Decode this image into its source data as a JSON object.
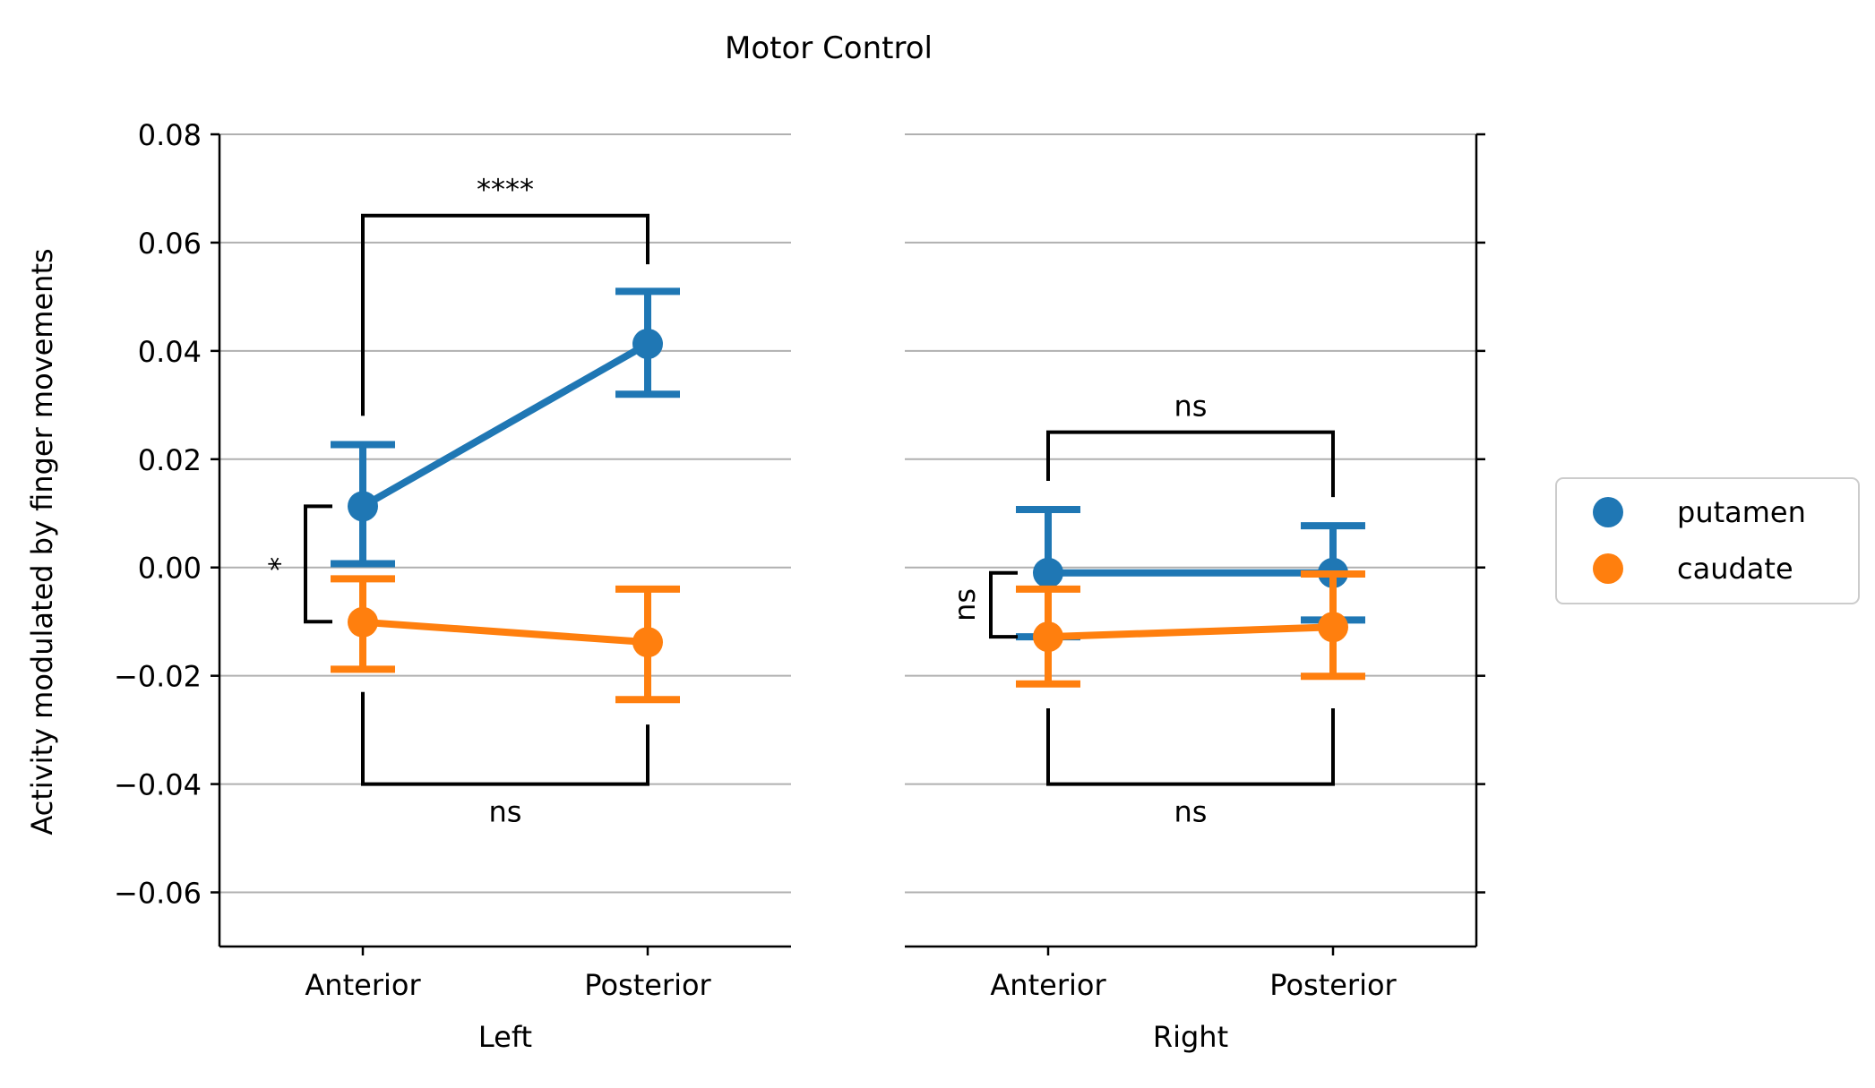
{
  "title": "Motor Control",
  "ylabel": "Activity modulated by finger movements",
  "legend": {
    "placement": "center-right",
    "entries": [
      {
        "name": "putamen",
        "color": "#1f77b4"
      },
      {
        "name": "caudate",
        "color": "#ff7f0e"
      }
    ]
  },
  "chart_data": {
    "type": "line",
    "ylim": [
      -0.07,
      0.08
    ],
    "yticks": [
      0.08,
      0.06,
      0.04,
      0.02,
      0.0,
      -0.02,
      -0.04,
      -0.06
    ],
    "ytick_labels": [
      "0.08",
      "0.06",
      "0.04",
      "0.02",
      "0.00",
      "−0.02",
      "−0.04",
      "−0.06"
    ],
    "grid": "y",
    "categories": [
      "Anterior",
      "Posterior"
    ],
    "panels": [
      {
        "xlabel": "Left",
        "series": [
          {
            "name": "putamen",
            "color": "#1f77b4",
            "values": [
              0.0113,
              0.0413
            ],
            "ci_low": [
              0.0007,
              0.032
            ],
            "ci_high": [
              0.0227,
              0.051
            ]
          },
          {
            "name": "caudate",
            "color": "#ff7f0e",
            "values": [
              -0.0101,
              -0.0138
            ],
            "ci_low": [
              -0.0188,
              -0.0244
            ],
            "ci_high": [
              -0.0021,
              -0.004
            ]
          }
        ],
        "annotations": [
          {
            "label": "****",
            "type": "horizontal",
            "from": 0,
            "to": 1,
            "bar_y": 0.065,
            "arm_from": [
              0.028,
              0.056
            ]
          },
          {
            "label": "ns",
            "type": "horizontal",
            "from": 0,
            "to": 1,
            "bar_y": -0.04,
            "arm_from": [
              -0.023,
              -0.029
            ]
          },
          {
            "label": "*",
            "type": "vertical",
            "at": 0,
            "y_range": [
              -0.01,
              0.0113
            ]
          }
        ]
      },
      {
        "xlabel": "Right",
        "series": [
          {
            "name": "putamen",
            "color": "#1f77b4",
            "values": [
              -0.001,
              -0.001
            ],
            "ci_low": [
              -0.0128,
              -0.0097
            ],
            "ci_high": [
              0.0107,
              0.0077
            ]
          },
          {
            "name": "caudate",
            "color": "#ff7f0e",
            "values": [
              -0.0128,
              -0.011
            ],
            "ci_low": [
              -0.0215,
              -0.0201
            ],
            "ci_high": [
              -0.004,
              -0.0012
            ]
          }
        ],
        "annotations": [
          {
            "label": "ns",
            "type": "horizontal",
            "from": 0,
            "to": 1,
            "bar_y": 0.025,
            "arm_from": [
              0.016,
              0.013
            ]
          },
          {
            "label": "ns",
            "type": "horizontal",
            "from": 0,
            "to": 1,
            "bar_y": -0.04,
            "arm_from": [
              -0.026,
              -0.026
            ]
          },
          {
            "label": "ns",
            "type": "vertical",
            "at": 0,
            "y_range": [
              -0.0128,
              -0.001
            ]
          }
        ]
      }
    ]
  }
}
